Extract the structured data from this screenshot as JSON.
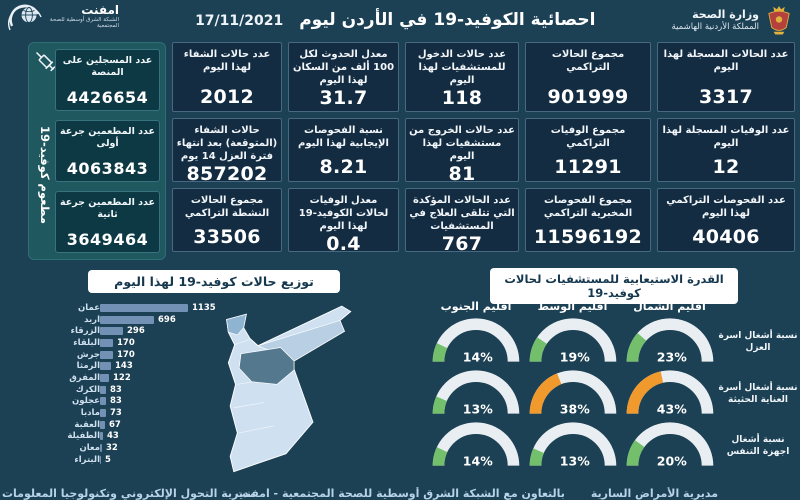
{
  "header": {
    "title": "احصائية الكوفيد-19 في الأردن ليوم",
    "date": "17/11/2021",
    "ministry": {
      "name": "وزارة الصحة",
      "country": "المملكة الأردنية الهاشمية"
    },
    "amphnet": {
      "name": "امفنت",
      "subtitle": "الشبكة الشرق أوسطية للصحة المجتمعية"
    }
  },
  "vaccination": {
    "ribbon": "مطعوم كوفيد-19",
    "cards": [
      {
        "label": "عدد المسجلين على المنصة",
        "value": "4426654"
      },
      {
        "label": "عدد المطعمين جرعة أولى",
        "value": "4063843"
      },
      {
        "label": "عدد المطعمين جرعة ثانية",
        "value": "3649464"
      }
    ]
  },
  "stats_cards": [
    {
      "label": "عدد الحالات المسجلة لهذا اليوم",
      "value": "3317"
    },
    {
      "label": "مجموع الحالات التراكمي",
      "value": "901999"
    },
    {
      "label": "عدد حالات الدخول للمستشفيات لهذا اليوم",
      "value": "118"
    },
    {
      "label": "معدل الحدوث لكل 100 ألف من السكان لهذا اليوم",
      "value": "31.7"
    },
    {
      "label": "عدد حالات الشفاء لهذا اليوم",
      "value": "2012"
    },
    {
      "label": "عدد الوفيات المسجلة لهذا اليوم",
      "value": "12"
    },
    {
      "label": "مجموع الوفيات التراكمي",
      "value": "11291"
    },
    {
      "label": "عدد حالات الخروج من مستشفيات لهذا اليوم",
      "value": "81"
    },
    {
      "label": "نسبة الفحوصات الإيجابية لهذا اليوم",
      "value": "8.21"
    },
    {
      "label": "حالات الشفاء (المتوقعة) بعد انتهاء فترة العزل 14 يوم",
      "value": "857202"
    },
    {
      "label": "عدد الفحوصات التراكمي لهذا اليوم",
      "value": "40406"
    },
    {
      "label": "مجموع الفحوصات المخبرية التراكمي",
      "value": "11596192"
    },
    {
      "label": "عدد الحالات المؤكدة التي تتلقى العلاج في المستشفيات",
      "value": "767"
    },
    {
      "label": "معدل الوفيات لحالات الكوفيد-19 لهذا اليوم",
      "value": "0.4"
    },
    {
      "label": "مجموع الحالات النشطة التراكمي",
      "value": "33506"
    }
  ],
  "chart_data": [
    {
      "type": "bar",
      "title": "توزيع حالات كوفيد-19 لهذا اليوم",
      "orientation": "horizontal",
      "categories": [
        "عمان",
        "اربد",
        "الزرقاء",
        "البلقاء",
        "جرش",
        "الرمثا",
        "المفرق",
        "الكرك",
        "عجلون",
        "مادبا",
        "العقبة",
        "الطفيلة",
        "معان",
        "البتراء"
      ],
      "values": [
        1135,
        696,
        296,
        170,
        170,
        143,
        122,
        83,
        83,
        73,
        67,
        43,
        32,
        5
      ],
      "xlim": [
        0,
        1200
      ],
      "grid": false,
      "value_labels": true
    },
    {
      "type": "gauge-grid",
      "title": "القدرة الاستيعابية للمستشفيات لحالات كوفيد-19",
      "columns": [
        "اقليم الشمال",
        "اقليم الوسط",
        "اقليم الجنوب"
      ],
      "rows": [
        {
          "label": "نسبة أشغال اسرة العزل",
          "values": [
            23,
            19,
            14
          ],
          "colors": [
            "green",
            "green",
            "green"
          ]
        },
        {
          "label": "نسبة أشغال أسرة العناية الحثيثة",
          "values": [
            43,
            38,
            13
          ],
          "colors": [
            "orange",
            "orange",
            "green"
          ]
        },
        {
          "label": "نسبة أشغال اجهزة التنفس",
          "values": [
            20,
            13,
            14
          ],
          "colors": [
            "green",
            "green",
            "green"
          ]
        }
      ]
    }
  ],
  "footer": {
    "right": "مديرية الأمراض السارية",
    "center": "بالتعاون مع الشبكة الشرق أوسطية للصحة المجتمعية - امفنت",
    "left": "مديرية التحول الإلكتروني وتكنولوجيا المعلومات"
  },
  "colors": {
    "background": "#1c4054",
    "card_bg": "#132c41",
    "panel_bg": "#1f585f",
    "bar": "#7391b4",
    "gauge_track": "#e9eef2",
    "green": "#74bf6c",
    "orange": "#f0992d",
    "map_base": "#cfe1f1",
    "map_amman": "#54788e",
    "map_irbid": "#8fb4d2",
    "footer_text": "#b7d3e8"
  }
}
